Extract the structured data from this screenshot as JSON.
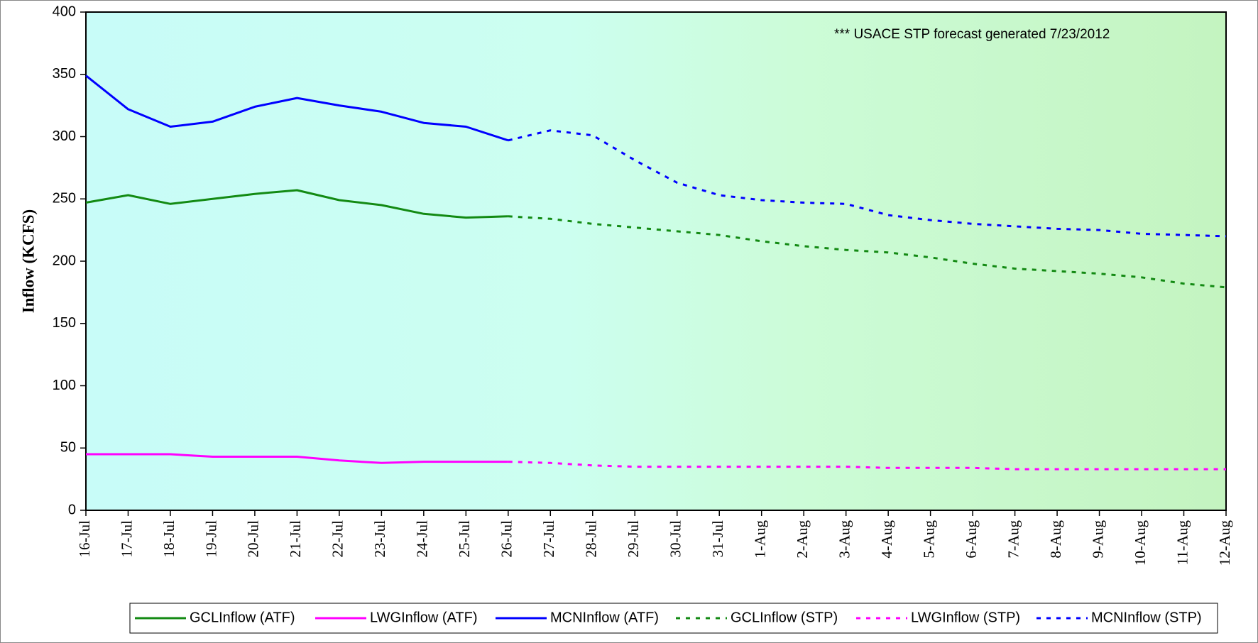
{
  "chart_data": {
    "type": "line",
    "y_label": "Inflow (KCFS)",
    "annotation": "*** USACE STP forecast generated  7/23/2012",
    "categories": [
      "16-Jul",
      "17-Jul",
      "18-Jul",
      "19-Jul",
      "20-Jul",
      "21-Jul",
      "22-Jul",
      "23-Jul",
      "24-Jul",
      "25-Jul",
      "26-Jul",
      "27-Jul",
      "28-Jul",
      "29-Jul",
      "30-Jul",
      "31-Jul",
      "1-Aug",
      "2-Aug",
      "3-Aug",
      "4-Aug",
      "5-Aug",
      "6-Aug",
      "7-Aug",
      "8-Aug",
      "9-Aug",
      "10-Aug",
      "11-Aug",
      "12-Aug"
    ],
    "series": [
      {
        "name": "GCLInflow (ATF)",
        "color": "#138a13",
        "line_style": "solid",
        "values": [
          247,
          253,
          246,
          250,
          254,
          257,
          249,
          245,
          238,
          235,
          236,
          null,
          null,
          null,
          null,
          null,
          null,
          null,
          null,
          null,
          null,
          null,
          null,
          null,
          null,
          null,
          null,
          null
        ]
      },
      {
        "name": "LWGInflow (ATF)",
        "color": "#ff00ff",
        "line_style": "solid",
        "values": [
          45,
          45,
          45,
          43,
          43,
          43,
          40,
          38,
          39,
          39,
          39,
          null,
          null,
          null,
          null,
          null,
          null,
          null,
          null,
          null,
          null,
          null,
          null,
          null,
          null,
          null,
          null,
          null
        ]
      },
      {
        "name": "MCNInflow (ATF)",
        "color": "#0000ff",
        "line_style": "solid",
        "values": [
          349,
          322,
          308,
          312,
          324,
          331,
          325,
          320,
          311,
          308,
          297,
          null,
          null,
          null,
          null,
          null,
          null,
          null,
          null,
          null,
          null,
          null,
          null,
          null,
          null,
          null,
          null,
          null
        ]
      },
      {
        "name": "GCLInflow (STP)",
        "color": "#138a13",
        "line_style": "dashed",
        "values": [
          null,
          null,
          null,
          null,
          null,
          null,
          null,
          null,
          null,
          null,
          236,
          234,
          230,
          227,
          224,
          221,
          216,
          212,
          209,
          207,
          203,
          198,
          194,
          192,
          190,
          187,
          182,
          179
        ]
      },
      {
        "name": "LWGInflow (STP)",
        "color": "#ff00ff",
        "line_style": "dashed",
        "values": [
          null,
          null,
          null,
          null,
          null,
          null,
          null,
          null,
          null,
          null,
          39,
          38,
          36,
          35,
          35,
          35,
          35,
          35,
          35,
          34,
          34,
          34,
          33,
          33,
          33,
          33,
          33,
          33
        ]
      },
      {
        "name": "MCNInflow (STP)",
        "color": "#0000ff",
        "line_style": "dashed",
        "values": [
          null,
          null,
          null,
          null,
          null,
          null,
          null,
          null,
          null,
          null,
          297,
          305,
          301,
          281,
          263,
          253,
          249,
          247,
          246,
          237,
          233,
          230,
          228,
          226,
          225,
          222,
          221,
          220
        ]
      }
    ],
    "ylim": [
      0,
      400
    ],
    "yticks": [
      0,
      50,
      100,
      150,
      200,
      250,
      300,
      350,
      400
    ],
    "legend": "bottom"
  }
}
